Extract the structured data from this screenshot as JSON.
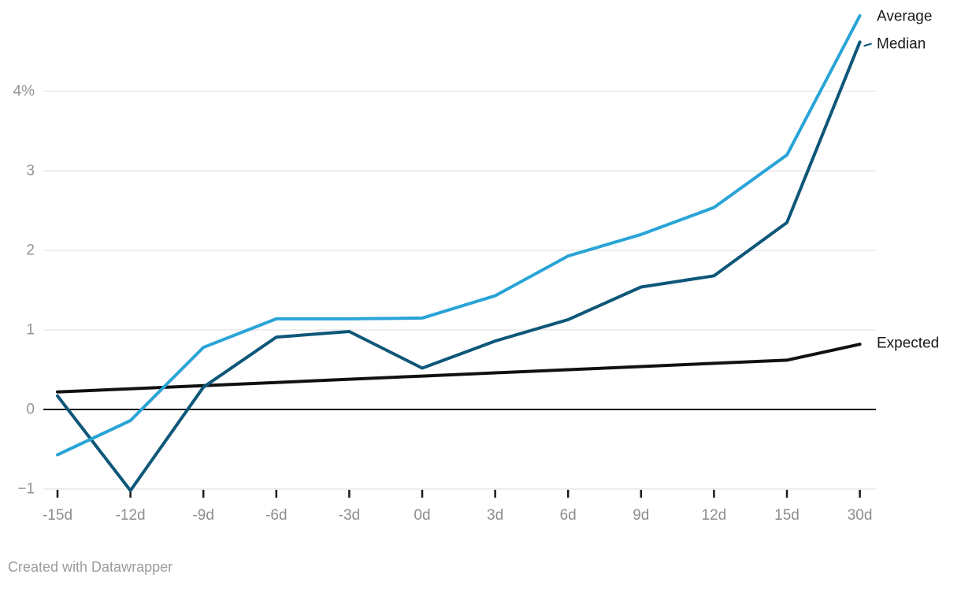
{
  "chart_data": {
    "type": "line",
    "title": "",
    "xlabel": "",
    "ylabel": "",
    "categories": [
      "-15d",
      "-12d",
      "-9d",
      "-6d",
      "-3d",
      "0d",
      "3d",
      "6d",
      "9d",
      "12d",
      "15d",
      "30d"
    ],
    "series": [
      {
        "name": "Average",
        "color": "#29a4d6",
        "values": [
          -0.57,
          -0.14,
          0.78,
          1.14,
          1.14,
          1.15,
          1.43,
          1.93,
          2.2,
          2.54,
          3.2,
          4.95
        ]
      },
      {
        "name": "Median",
        "color": "#0e5779",
        "values": [
          0.17,
          -1.02,
          0.28,
          0.91,
          0.98,
          0.52,
          0.86,
          1.13,
          1.54,
          1.68,
          2.35,
          4.62
        ],
        "label_connector": true
      },
      {
        "name": "Expected",
        "color": "#111111",
        "values": [
          0.22,
          0.26,
          0.3,
          0.34,
          0.38,
          0.42,
          0.46,
          0.5,
          0.54,
          0.58,
          0.62,
          0.82
        ]
      }
    ],
    "yticks": [
      {
        "v": 4,
        "label": "4%"
      },
      {
        "v": 3,
        "label": "3"
      },
      {
        "v": 2,
        "label": "2"
      },
      {
        "v": 1,
        "label": "1"
      },
      {
        "v": 0,
        "label": "0"
      },
      {
        "v": -1,
        "label": "−1"
      }
    ],
    "ylim": [
      -1.1,
      5.0
    ],
    "grid": true,
    "zero_baseline": true,
    "legend_position": "line-end-labels"
  },
  "colors": {
    "grid": "#e8e8e8",
    "zero_line": "#111111",
    "tick": "#1a1a1a",
    "axis_text": "#8d8d8d",
    "series_label_text": "#1a1a1a",
    "background": "#ffffff"
  },
  "footer": {
    "credit": "Created with Datawrapper"
  }
}
